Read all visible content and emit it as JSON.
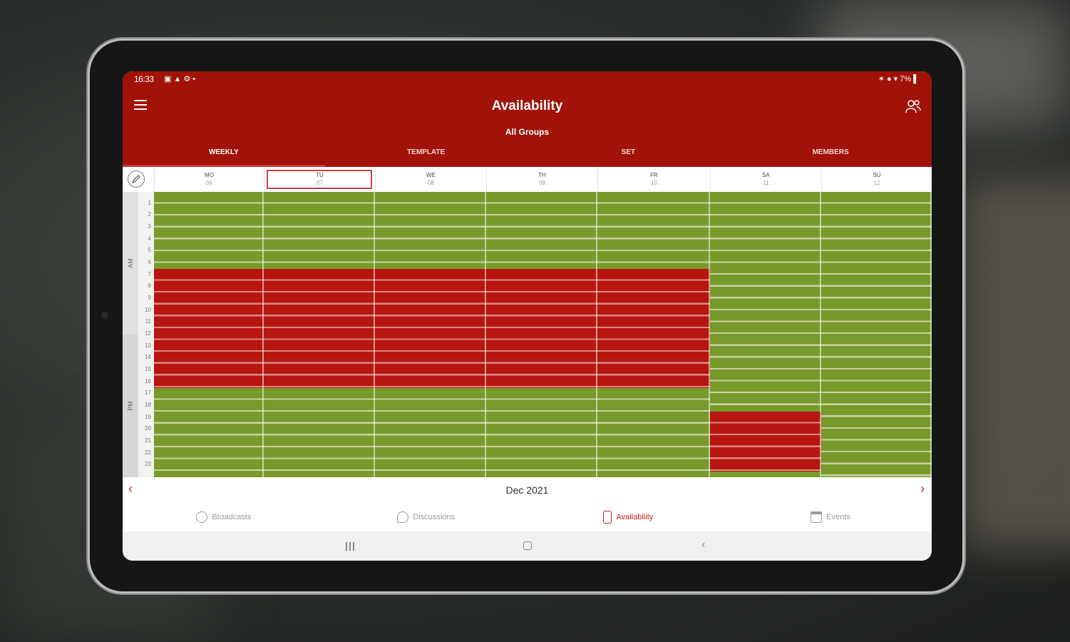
{
  "status_bar": {
    "time": "16:33",
    "left_icons": "▣ ▲ ⚙ •",
    "right_icons": "✶ ● ▾ 7% ▌"
  },
  "app_bar": {
    "title": "Availability",
    "subtitle": "All Groups",
    "menu_icon": "hamburger-icon",
    "group_icon": "group-icon"
  },
  "tabs": [
    {
      "label": "WEEKLY",
      "active": true
    },
    {
      "label": "TEMPLATE",
      "active": false
    },
    {
      "label": "SET",
      "active": false
    },
    {
      "label": "MEMBERS",
      "active": false
    }
  ],
  "days": [
    {
      "name": "MO",
      "num": "06"
    },
    {
      "name": "TU",
      "num": "07"
    },
    {
      "name": "WE",
      "num": "08"
    },
    {
      "name": "TH",
      "num": "09"
    },
    {
      "name": "FR",
      "num": "10"
    },
    {
      "name": "SA",
      "num": "11"
    },
    {
      "name": "SU",
      "num": "12"
    }
  ],
  "selected_day": "TU",
  "periods": {
    "am": "AM",
    "pm": "PM"
  },
  "hours": [
    "1",
    "2",
    "3",
    "4",
    "5",
    "6",
    "7",
    "8",
    "9",
    "10",
    "11",
    "12",
    "13",
    "14",
    "15",
    "16",
    "17",
    "18",
    "19",
    "20",
    "21",
    "22",
    "23"
  ],
  "busy_blocks": [
    {
      "day": "MO",
      "from": "7",
      "to": "17"
    },
    {
      "day": "TU",
      "from": "7",
      "to": "17"
    },
    {
      "day": "WE",
      "from": "7",
      "to": "17"
    },
    {
      "day": "TH",
      "from": "7",
      "to": "17"
    },
    {
      "day": "FR",
      "from": "7",
      "to": "17"
    },
    {
      "day": "SA",
      "from": "19",
      "to": "24"
    }
  ],
  "colors": {
    "free": "#789a2a",
    "busy": "#b71510",
    "accent": "#a11208"
  },
  "month_nav": {
    "label": "Dec 2021",
    "prev": "‹",
    "next": "›"
  },
  "bottom_nav": [
    {
      "label": "Broadcasts",
      "icon": "broadcast-icon",
      "active": false
    },
    {
      "label": "Discussions",
      "icon": "chat-bubble-icon",
      "active": false
    },
    {
      "label": "Availability",
      "icon": "phone-icon",
      "active": true
    },
    {
      "label": "Events",
      "icon": "calendar-icon",
      "active": false
    }
  ],
  "system_nav": {
    "back": "‹"
  }
}
